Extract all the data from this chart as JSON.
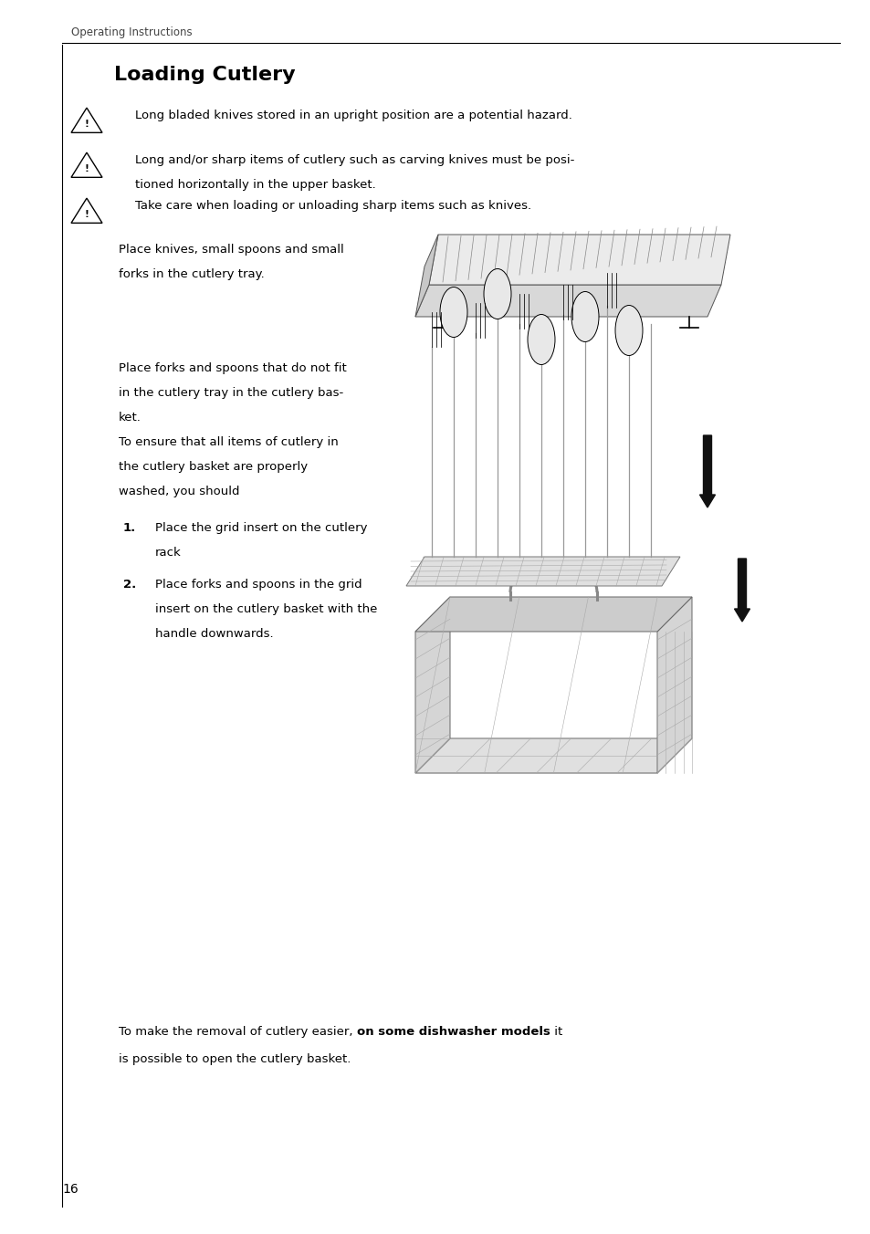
{
  "page_width": 9.54,
  "page_height": 13.52,
  "bg_color": "#ffffff",
  "header_text": "Operating Instructions",
  "title": "Loading Cutlery",
  "warning1": "Long bladed knives stored in an upright position are a potential hazard.",
  "warning2_l1": "Long and/or sharp items of cutlery such as carving knives must be posi-",
  "warning2_l2": "tioned horizontally in the upper basket.",
  "warning3": "Take care when loading or unloading sharp items such as knives.",
  "para1_l1": "Place knives, small spoons and small",
  "para1_l2": "forks in the cutlery tray.",
  "para2_l1": "Place forks and spoons that do not fit",
  "para2_l2": "in the cutlery tray in the cutlery bas-",
  "para2_l3": "ket.",
  "para2_l4": "To ensure that all items of cutlery in",
  "para2_l5": "the cutlery basket are properly",
  "para2_l6": "washed, you should",
  "step1_num": "1.",
  "step1_l1": "Place the grid insert on the cutlery",
  "step1_l2": "rack",
  "step2_num": "2.",
  "step2_l1": "Place forks and spoons in the grid",
  "step2_l2": "insert on the cutlery basket with the",
  "step2_l3": "handle downwards.",
  "footer_normal1": "To make the removal of cutlery easier, ",
  "footer_bold": "on some dishwasher models",
  "footer_normal2": " it",
  "footer_l2": "is possible to open the cutlery basket.",
  "page_number": "16"
}
